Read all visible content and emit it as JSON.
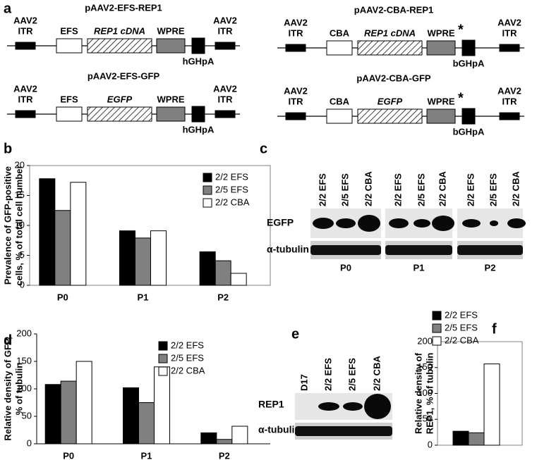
{
  "panel_labels": [
    "a",
    "b",
    "c",
    "d",
    "e",
    "f"
  ],
  "constructs": [
    {
      "title": "pAAV2-EFS-REP1",
      "elements": [
        [
          "AAV2",
          "ITR"
        ],
        "EFS",
        "REP1 cDNA",
        "WPRE",
        "hGHpA",
        [
          "AAV2",
          "ITR"
        ]
      ]
    },
    {
      "title": "pAAV2-CBA-REP1",
      "elements": [
        [
          "AAV2",
          "ITR"
        ],
        "CBA",
        "REP1 cDNA",
        "WPRE",
        "bGHpA",
        [
          "AAV2",
          "ITR"
        ]
      ],
      "asterisk": "*"
    },
    {
      "title": "pAAV2-EFS-GFP",
      "elements": [
        [
          "AAV2",
          "ITR"
        ],
        "EFS",
        "EGFP",
        "WPRE",
        "hGHpA",
        [
          "AAV2",
          "ITR"
        ]
      ]
    },
    {
      "title": "pAAV2-CBA-GFP",
      "elements": [
        [
          "AAV2",
          "ITR"
        ],
        "CBA",
        "EGFP",
        "WPRE",
        "bGHpA",
        [
          "AAV2",
          "ITR"
        ]
      ],
      "asterisk": "*"
    }
  ],
  "chart_data": [
    {
      "type": "bar",
      "ylabel": [
        "Prevalence of GFP-positive",
        "cells, % of total cell number"
      ],
      "categories": [
        "P0",
        "P1",
        "P2"
      ],
      "series": [
        {
          "name": "2/2 EFS",
          "color": "#000000",
          "values": [
            17.8,
            9.1,
            5.6
          ]
        },
        {
          "name": "2/5 EFS",
          "color": "#808080",
          "values": [
            12.5,
            7.9,
            4.1
          ]
        },
        {
          "name": "2/2 CBA",
          "color": "#ffffff",
          "values": [
            17.2,
            9.1,
            2.0
          ]
        }
      ],
      "ylim": [
        0,
        20
      ],
      "yticks": [
        0,
        5,
        10,
        15,
        20
      ],
      "frame": true,
      "legend": "upper right"
    },
    {
      "type": "bar",
      "ylabel": [
        "Relative density of GFP,",
        "% of tubulin"
      ],
      "categories": [
        "P0",
        "P1",
        "P2"
      ],
      "series": [
        {
          "name": "2/2 EFS",
          "color": "#000000",
          "values": [
            108,
            102,
            20
          ]
        },
        {
          "name": "2/5 EFS",
          "color": "#808080",
          "values": [
            114,
            75,
            8
          ]
        },
        {
          "name": "2/2 CBA",
          "color": "#ffffff",
          "values": [
            150,
            140,
            32
          ]
        }
      ],
      "ylim": [
        0,
        200
      ],
      "yticks": [
        0,
        50,
        100,
        150,
        200
      ],
      "frame": false,
      "legend": "upper right"
    },
    {
      "type": "bar",
      "ylabel": [
        "Relative density of",
        "REP1, % of tubulin"
      ],
      "categories": [
        null
      ],
      "series": [
        {
          "name": "2/2 EFS",
          "color": "#000000",
          "values": [
            27
          ]
        },
        {
          "name": "2/5 EFS",
          "color": "#808080",
          "values": [
            24
          ]
        },
        {
          "name": "2/2 CBA",
          "color": "#ffffff",
          "values": [
            157
          ]
        }
      ],
      "ylim": [
        0,
        200
      ],
      "yticks": [
        0,
        50,
        100,
        150,
        200
      ],
      "frame": true,
      "legend": "above"
    }
  ],
  "blots": [
    {
      "rows": [
        "EGFP",
        "α-tubulin"
      ],
      "groups": [
        {
          "name": "P0",
          "lanes": [
            "2/2 EFS",
            "2/5 EFS",
            "2/2 CBA"
          ]
        },
        {
          "name": "P1",
          "lanes": [
            "2/2 EFS",
            "2/5 EFS",
            "2/2 CBA"
          ]
        },
        {
          "name": "P2",
          "lanes": [
            "2/2 EFS",
            "2/5 EFS",
            "2/2 CBA"
          ]
        }
      ]
    },
    {
      "rows": [
        "REP1",
        "α-tubulin"
      ],
      "groups": [
        {
          "lanes": [
            "D17",
            "2/2 EFS",
            "2/5 EFS",
            "2/2 CBA"
          ]
        }
      ]
    }
  ]
}
